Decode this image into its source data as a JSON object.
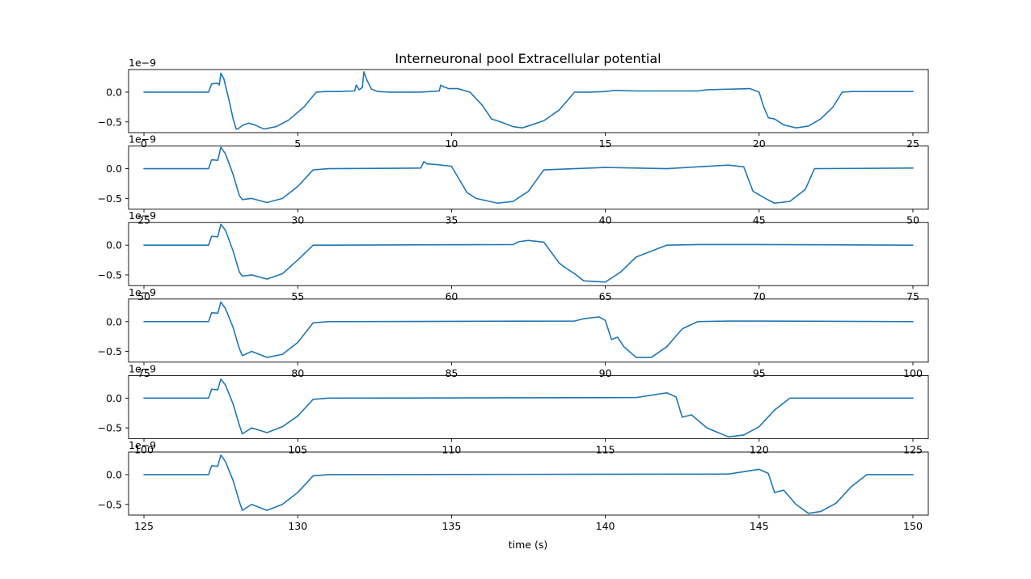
{
  "chart_data": {
    "type": "line",
    "title": "Interneuronal pool Extracellular potential",
    "xlabel": "time (s)",
    "ylabel": "",
    "y_offset_label": "1e−9",
    "line_color": "#1f77b4",
    "grid": false,
    "panels": [
      {
        "xlim": [
          -0.5,
          25.5
        ],
        "ylim": [
          -0.68,
          0.38
        ],
        "xticks": [
          "0",
          "5",
          "10",
          "15",
          "20",
          "25"
        ],
        "yticks": [
          "0.0",
          "−0.5"
        ],
        "x": [
          0,
          2.1,
          2.2,
          2.4,
          2.45,
          2.5,
          2.6,
          2.75,
          2.9,
          3.0,
          3.05,
          3.2,
          3.4,
          3.6,
          3.9,
          4.3,
          4.7,
          5.2,
          5.6,
          5.9,
          6.3,
          6.85,
          6.9,
          7.0,
          7.1,
          7.15,
          7.25,
          7.4,
          7.6,
          8.0,
          9.0,
          9.6,
          9.65,
          9.7,
          9.9,
          10.2,
          10.6,
          11.0,
          11.3,
          11.6,
          12.0,
          12.3,
          12.6,
          13.0,
          13.5,
          14.0,
          14.5,
          15.0,
          15.3,
          16.0,
          18.0,
          18.3,
          19.0,
          19.7,
          20.0,
          20.15,
          20.3,
          20.5,
          20.8,
          21.2,
          21.6,
          22.0,
          22.4,
          22.7,
          23.0,
          25.0
        ],
        "y": [
          0,
          0,
          0.14,
          0.15,
          0.12,
          0.32,
          0.22,
          -0.1,
          -0.45,
          -0.62,
          -0.62,
          -0.56,
          -0.52,
          -0.55,
          -0.62,
          -0.58,
          -0.47,
          -0.25,
          0,
          0.01,
          0.01,
          0.02,
          0.12,
          0.04,
          0.08,
          0.34,
          0.2,
          0.05,
          0.01,
          0,
          0,
          0.02,
          0.12,
          0.1,
          0.06,
          0.06,
          0,
          -0.22,
          -0.45,
          -0.5,
          -0.58,
          -0.6,
          -0.55,
          -0.48,
          -0.3,
          0,
          0,
          0.01,
          0.03,
          0.02,
          0.02,
          0.04,
          0.05,
          0.06,
          0,
          -0.25,
          -0.43,
          -0.45,
          -0.55,
          -0.6,
          -0.57,
          -0.45,
          -0.25,
          0,
          0.01,
          0.01
        ]
      },
      {
        "xlim": [
          24.5,
          50.5
        ],
        "ylim": [
          -0.68,
          0.38
        ],
        "xticks": [
          "25",
          "30",
          "35",
          "40",
          "45",
          "50"
        ],
        "yticks": [
          "0.0",
          "−0.5"
        ],
        "x": [
          25,
          27.1,
          27.2,
          27.4,
          27.5,
          27.65,
          27.9,
          28.1,
          28.2,
          28.5,
          29.0,
          29.5,
          30.0,
          30.5,
          31.0,
          34.0,
          34.1,
          34.2,
          34.5,
          35.0,
          35.5,
          35.8,
          36.5,
          37.0,
          37.5,
          38.0,
          39.0,
          40.0,
          42.0,
          43.0,
          44.0,
          44.5,
          44.8,
          45.2,
          45.5,
          46.0,
          46.5,
          46.8,
          50.0
        ],
        "y": [
          0,
          0,
          0.15,
          0.14,
          0.36,
          0.25,
          -0.1,
          -0.45,
          -0.52,
          -0.5,
          -0.57,
          -0.5,
          -0.3,
          -0.02,
          0,
          0.01,
          0.12,
          0.08,
          0.07,
          0.04,
          -0.4,
          -0.5,
          -0.58,
          -0.55,
          -0.38,
          -0.02,
          0,
          0.02,
          0,
          0.03,
          0.06,
          0.03,
          -0.38,
          -0.5,
          -0.58,
          -0.55,
          -0.35,
          0,
          0.01
        ]
      },
      {
        "xlim": [
          49.5,
          75.5
        ],
        "ylim": [
          -0.68,
          0.38
        ],
        "xticks": [
          "50",
          "55",
          "60",
          "65",
          "70",
          "75"
        ],
        "yticks": [
          "0.0",
          "−0.5"
        ],
        "x": [
          50,
          52.1,
          52.2,
          52.4,
          52.5,
          52.65,
          52.9,
          53.1,
          53.2,
          53.5,
          54.0,
          54.5,
          55.0,
          55.5,
          56.0,
          62.0,
          62.2,
          62.5,
          63.0,
          63.5,
          63.7,
          64.0,
          64.3,
          65.0,
          65.5,
          66.0,
          67.0,
          68.0,
          70.0,
          75.0
        ],
        "y": [
          0,
          0,
          0.15,
          0.14,
          0.35,
          0.25,
          -0.1,
          -0.45,
          -0.52,
          -0.5,
          -0.57,
          -0.48,
          -0.25,
          0,
          0,
          0.01,
          0.06,
          0.08,
          0.05,
          -0.3,
          -0.38,
          -0.48,
          -0.6,
          -0.62,
          -0.45,
          -0.2,
          0,
          0.01,
          0.01,
          0
        ]
      },
      {
        "xlim": [
          74.5,
          100.5
        ],
        "ylim": [
          -0.68,
          0.38
        ],
        "xticks": [
          "75",
          "80",
          "85",
          "90",
          "95",
          "100"
        ],
        "yticks": [
          "0.0",
          "−0.5"
        ],
        "x": [
          75,
          77.1,
          77.2,
          77.4,
          77.5,
          77.65,
          77.9,
          78.1,
          78.2,
          78.5,
          79.0,
          79.5,
          80.0,
          80.5,
          81.0,
          89.0,
          89.3,
          89.8,
          90.0,
          90.2,
          90.4,
          90.6,
          91.0,
          91.5,
          92.0,
          92.5,
          93.0,
          94.0,
          95.0,
          100.0
        ],
        "y": [
          0,
          0,
          0.15,
          0.14,
          0.33,
          0.22,
          -0.1,
          -0.45,
          -0.57,
          -0.5,
          -0.6,
          -0.55,
          -0.35,
          -0.02,
          0,
          0.01,
          0.05,
          0.08,
          0.02,
          -0.3,
          -0.26,
          -0.42,
          -0.6,
          -0.6,
          -0.42,
          -0.12,
          0,
          0.01,
          0.01,
          0
        ]
      },
      {
        "xlim": [
          99.5,
          125.5
        ],
        "ylim": [
          -0.68,
          0.38
        ],
        "xticks": [
          "100",
          "105",
          "110",
          "115",
          "120",
          "125"
        ],
        "yticks": [
          "0.0",
          "−0.5"
        ],
        "x": [
          100,
          102.1,
          102.2,
          102.4,
          102.5,
          102.65,
          102.9,
          103.1,
          103.2,
          103.5,
          104.0,
          104.5,
          105.0,
          105.5,
          106.0,
          116.0,
          116.5,
          117.0,
          117.3,
          117.5,
          117.8,
          118.3,
          119.0,
          119.5,
          120.0,
          120.5,
          121.0,
          125.0
        ],
        "y": [
          0,
          0,
          0.15,
          0.14,
          0.32,
          0.22,
          -0.1,
          -0.45,
          -0.6,
          -0.5,
          -0.58,
          -0.48,
          -0.3,
          -0.02,
          0,
          0.01,
          0.05,
          0.09,
          0.02,
          -0.32,
          -0.28,
          -0.5,
          -0.65,
          -0.62,
          -0.48,
          -0.2,
          0,
          0
        ]
      },
      {
        "xlim": [
          124.5,
          150.5
        ],
        "ylim": [
          -0.68,
          0.38
        ],
        "xticks": [
          "125",
          "130",
          "135",
          "140",
          "145",
          "150"
        ],
        "yticks": [
          "0.0",
          "−0.5"
        ],
        "x": [
          125,
          127.1,
          127.2,
          127.4,
          127.5,
          127.65,
          127.9,
          128.1,
          128.2,
          128.5,
          129.0,
          129.5,
          130.0,
          130.5,
          131.0,
          144.0,
          144.5,
          145.0,
          145.3,
          145.5,
          145.8,
          146.2,
          146.6,
          147.0,
          147.5,
          148.0,
          148.5,
          150.0
        ],
        "y": [
          0,
          0,
          0.15,
          0.14,
          0.33,
          0.22,
          -0.1,
          -0.45,
          -0.6,
          -0.5,
          -0.6,
          -0.5,
          -0.3,
          -0.02,
          0,
          0.01,
          0.05,
          0.09,
          0.02,
          -0.3,
          -0.26,
          -0.5,
          -0.65,
          -0.62,
          -0.48,
          -0.2,
          0,
          0
        ]
      }
    ]
  }
}
